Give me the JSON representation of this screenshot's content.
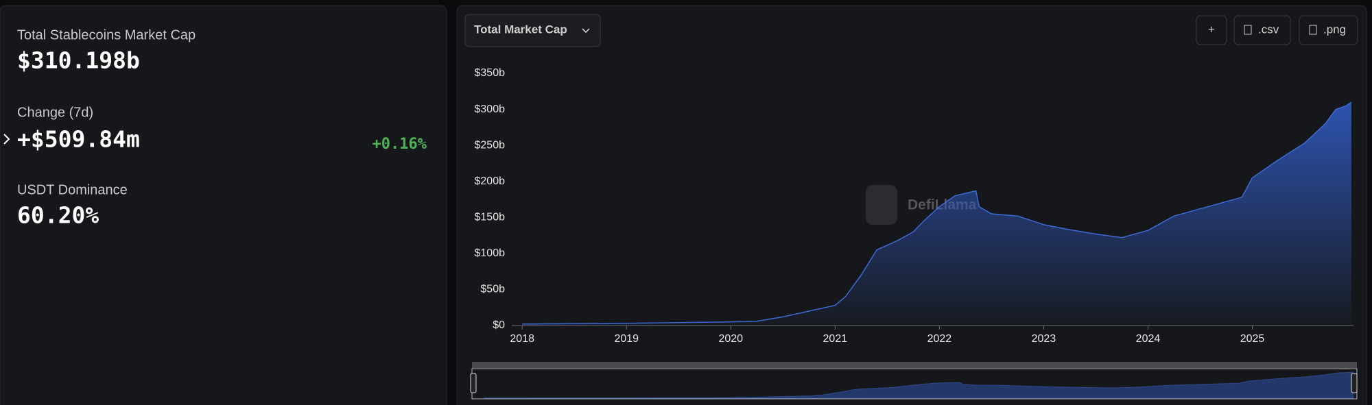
{
  "summary": {
    "market_cap_label": "Total Stablecoins Market Cap",
    "market_cap_value": "$310.198b",
    "change_label": "Change (7d)",
    "change_value": "+$509.84m",
    "change_percent": "+0.16%",
    "dominance_label": "USDT Dominance",
    "dominance_value": "60.20%"
  },
  "toolbar": {
    "metric": "Total Market Cap",
    "add": "+",
    "csv": ".csv",
    "png": ".png"
  },
  "watermark": "DefiLlama",
  "chart_data": {
    "type": "area",
    "color": "#3d6ad6",
    "x": [
      2018,
      2019,
      2019.5,
      2020,
      2020.25,
      2020.5,
      2020.75,
      2021,
      2021.1,
      2021.25,
      2021.4,
      2021.6,
      2021.75,
      2021.85,
      2022,
      2022.15,
      2022.35,
      2022.38,
      2022.5,
      2022.75,
      2023,
      2023.25,
      2023.5,
      2023.75,
      2024,
      2024.25,
      2024.5,
      2024.75,
      2024.9,
      2025,
      2025.25,
      2025.5,
      2025.7,
      2025.8,
      2025.9,
      2025.95
    ],
    "series": [
      {
        "name": "Total Market Cap",
        "values": [
          2,
          3,
          4,
          5,
          6,
          12,
          20,
          28,
          40,
          70,
          105,
          118,
          130,
          145,
          165,
          180,
          187,
          165,
          155,
          152,
          140,
          133,
          127,
          122,
          132,
          152,
          162,
          172,
          178,
          205,
          230,
          253,
          280,
          300,
          305,
          310
        ]
      }
    ],
    "xlim": [
      2017.9,
      2025.97
    ],
    "xticks": [
      2018,
      2019,
      2020,
      2021,
      2022,
      2023,
      2024,
      2025
    ],
    "ylim": [
      0,
      350
    ],
    "yticks": [
      {
        "value": 0,
        "label": "$0"
      },
      {
        "value": 50,
        "label": "$50b"
      },
      {
        "value": 100,
        "label": "$100b"
      },
      {
        "value": 150,
        "label": "$150b"
      },
      {
        "value": 200,
        "label": "$200b"
      },
      {
        "value": 250,
        "label": "$250b"
      },
      {
        "value": 300,
        "label": "$300b"
      },
      {
        "value": 350,
        "label": "$350b"
      }
    ]
  }
}
